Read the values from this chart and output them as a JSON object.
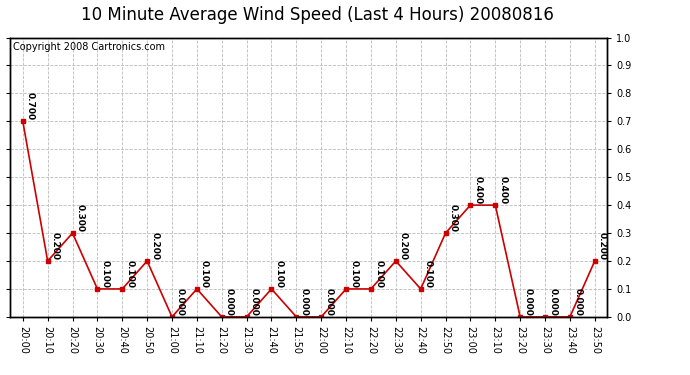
{
  "title": "10 Minute Average Wind Speed (Last 4 Hours) 20080816",
  "copyright": "Copyright 2008 Cartronics.com",
  "x_labels": [
    "20:00",
    "20:10",
    "20:20",
    "20:30",
    "20:40",
    "20:50",
    "21:00",
    "21:10",
    "21:20",
    "21:30",
    "21:40",
    "21:50",
    "22:00",
    "22:10",
    "22:20",
    "22:30",
    "22:40",
    "22:50",
    "23:00",
    "23:10",
    "23:20",
    "23:30",
    "23:40",
    "23:50"
  ],
  "y_values": [
    0.7,
    0.2,
    0.3,
    0.1,
    0.1,
    0.2,
    0.0,
    0.1,
    0.0,
    0.0,
    0.1,
    0.0,
    0.0,
    0.1,
    0.1,
    0.2,
    0.1,
    0.3,
    0.4,
    0.4,
    0.0,
    0.0,
    0.0,
    0.2
  ],
  "line_color": "#cc0000",
  "marker_color": "#cc0000",
  "bg_color": "#ffffff",
  "plot_bg_color": "#ffffff",
  "grid_color": "#bbbbbb",
  "ylim": [
    0.0,
    1.0
  ],
  "yticks": [
    0.0,
    0.1,
    0.2,
    0.3,
    0.4,
    0.5,
    0.6,
    0.7,
    0.8,
    0.9,
    1.0
  ],
  "title_fontsize": 12,
  "label_fontsize": 7,
  "annotation_fontsize": 6.5,
  "copyright_fontsize": 7
}
